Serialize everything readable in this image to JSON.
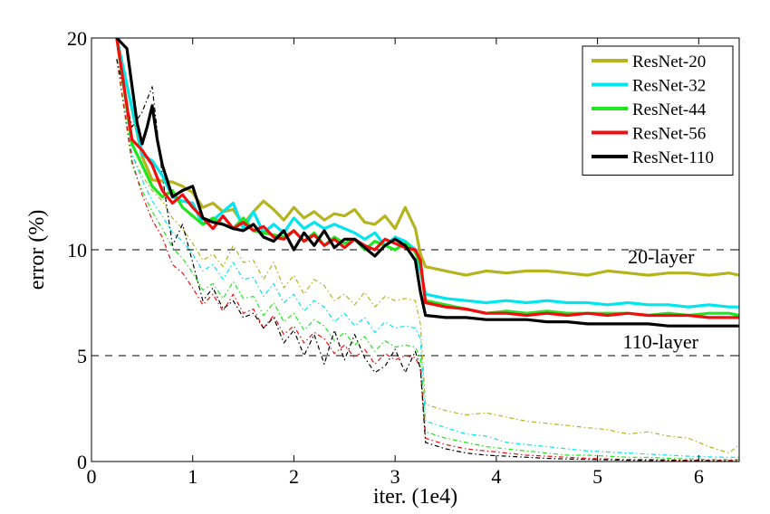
{
  "chart_data": {
    "type": "line",
    "title": "",
    "xlabel": "iter. (1e4)",
    "ylabel": "error (%)",
    "xlim": [
      0,
      6.4
    ],
    "ylim": [
      0,
      20
    ],
    "xticks": [
      0,
      1,
      2,
      3,
      4,
      5,
      6
    ],
    "yticks": [
      0,
      5,
      10,
      20
    ],
    "grid": "dashed horizontal lines at 5, 10, 20",
    "legend_position": "top-right",
    "annotations": [
      "20-layer",
      "110-layer"
    ],
    "series": [
      {
        "name": "ResNet-20",
        "color": "#b5b31e",
        "split": "test",
        "x": [
          0.25,
          0.5,
          0.6,
          0.8,
          0.9,
          1.0,
          1.1,
          1.2,
          1.3,
          1.4,
          1.5,
          1.6,
          1.7,
          1.8,
          1.9,
          2.0,
          2.1,
          2.2,
          2.3,
          2.4,
          2.5,
          2.6,
          2.7,
          2.8,
          2.9,
          3.0,
          3.05,
          3.1,
          3.15,
          3.2,
          3.25,
          3.3,
          3.5,
          3.7,
          3.9,
          4.1,
          4.3,
          4.5,
          4.7,
          4.9,
          5.1,
          5.3,
          5.5,
          5.7,
          5.9,
          6.1,
          6.3,
          6.4
        ],
        "y": [
          20,
          14.4,
          13.3,
          13.2,
          13.0,
          12.7,
          12.0,
          12.2,
          11.8,
          11.9,
          11.2,
          11.8,
          12.3,
          11.9,
          11.4,
          12.0,
          11.5,
          11.8,
          11.4,
          11.7,
          11.6,
          11.9,
          11.3,
          11.2,
          11.6,
          11.0,
          11.5,
          12.0,
          11.5,
          11.0,
          9.8,
          9.2,
          9.0,
          8.8,
          9.0,
          8.9,
          9.0,
          9.0,
          8.9,
          8.8,
          9.0,
          8.9,
          8.8,
          8.9,
          8.9,
          8.8,
          8.9,
          8.8
        ]
      },
      {
        "name": "ResNet-32",
        "color": "#00e5ee",
        "split": "test",
        "x": [
          0.25,
          0.5,
          0.6,
          0.7,
          0.8,
          0.9,
          1.0,
          1.1,
          1.2,
          1.3,
          1.4,
          1.5,
          1.6,
          1.7,
          1.8,
          1.9,
          2.0,
          2.1,
          2.2,
          2.3,
          2.4,
          2.5,
          2.6,
          2.7,
          2.8,
          2.9,
          3.0,
          3.1,
          3.2,
          3.25,
          3.3,
          3.5,
          3.7,
          3.9,
          4.1,
          4.3,
          4.5,
          4.7,
          4.9,
          5.1,
          5.3,
          5.5,
          5.7,
          5.9,
          6.1,
          6.3,
          6.4
        ],
        "y": [
          20,
          14.5,
          14.2,
          13.5,
          12.5,
          12.3,
          12.2,
          11.2,
          11.4,
          11.8,
          12.2,
          11.0,
          11.8,
          10.8,
          11.2,
          10.8,
          11.5,
          11.0,
          11.3,
          11.0,
          11.2,
          11.0,
          10.8,
          10.5,
          10.8,
          10.2,
          10.6,
          10.4,
          10.0,
          9.0,
          7.9,
          7.7,
          7.6,
          7.5,
          7.6,
          7.5,
          7.6,
          7.5,
          7.5,
          7.4,
          7.5,
          7.4,
          7.4,
          7.3,
          7.4,
          7.3,
          7.3
        ]
      },
      {
        "name": "ResNet-44",
        "color": "#1ee620",
        "split": "test",
        "x": [
          0.25,
          0.4,
          0.5,
          0.6,
          0.7,
          0.8,
          0.9,
          1.0,
          1.1,
          1.2,
          1.3,
          1.4,
          1.5,
          1.6,
          1.7,
          1.8,
          1.9,
          2.0,
          2.1,
          2.2,
          2.3,
          2.4,
          2.5,
          2.6,
          2.7,
          2.8,
          2.9,
          3.0,
          3.1,
          3.2,
          3.25,
          3.3,
          3.5,
          3.7,
          3.9,
          4.1,
          4.3,
          4.5,
          4.7,
          4.9,
          5.1,
          5.3,
          5.5,
          5.7,
          5.9,
          6.1,
          6.3,
          6.4
        ],
        "y": [
          20,
          15.0,
          14.0,
          13.0,
          12.5,
          12.8,
          12.0,
          11.6,
          11.2,
          11.5,
          11.2,
          11.0,
          11.5,
          10.9,
          10.8,
          10.7,
          10.6,
          10.9,
          10.4,
          10.8,
          10.2,
          10.6,
          10.3,
          10.5,
          10.0,
          10.4,
          10.2,
          10.0,
          10.3,
          9.9,
          9.3,
          7.6,
          7.4,
          7.2,
          7.0,
          7.1,
          7.0,
          7.1,
          7.0,
          7.0,
          7.0,
          7.0,
          6.9,
          7.0,
          6.9,
          7.0,
          7.0,
          6.9
        ]
      },
      {
        "name": "ResNet-56",
        "color": "#ef0f0f",
        "split": "test",
        "x": [
          0.25,
          0.4,
          0.5,
          0.6,
          0.7,
          0.8,
          0.9,
          1.0,
          1.1,
          1.2,
          1.3,
          1.4,
          1.5,
          1.6,
          1.7,
          1.8,
          1.9,
          2.0,
          2.1,
          2.2,
          2.3,
          2.4,
          2.5,
          2.6,
          2.7,
          2.8,
          2.9,
          3.0,
          3.1,
          3.2,
          3.25,
          3.3,
          3.5,
          3.7,
          3.9,
          4.1,
          4.3,
          4.5,
          4.7,
          4.9,
          5.1,
          5.3,
          5.5,
          5.7,
          5.9,
          6.1,
          6.3,
          6.4
        ],
        "y": [
          20,
          15.2,
          14.7,
          14.0,
          12.8,
          12.2,
          12.6,
          12.0,
          11.5,
          11.0,
          11.6,
          11.0,
          11.3,
          10.9,
          11.1,
          10.6,
          10.5,
          10.9,
          10.4,
          10.7,
          10.2,
          10.5,
          10.1,
          10.5,
          10.2,
          10.0,
          10.5,
          10.3,
          10.1,
          10.0,
          9.5,
          7.5,
          7.3,
          7.2,
          7.0,
          7.0,
          6.9,
          7.0,
          6.9,
          7.0,
          6.9,
          7.0,
          6.9,
          6.9,
          6.9,
          6.8,
          6.8,
          6.8
        ]
      },
      {
        "name": "ResNet-110",
        "color": "#000000",
        "split": "test",
        "x": [
          0.25,
          0.35,
          0.45,
          0.5,
          0.55,
          0.6,
          0.65,
          0.7,
          0.8,
          0.9,
          1.0,
          1.1,
          1.2,
          1.3,
          1.4,
          1.5,
          1.6,
          1.7,
          1.8,
          1.9,
          2.0,
          2.1,
          2.2,
          2.3,
          2.4,
          2.5,
          2.6,
          2.7,
          2.8,
          2.9,
          3.0,
          3.1,
          3.2,
          3.25,
          3.3,
          3.5,
          3.7,
          3.9,
          4.1,
          4.3,
          4.5,
          4.7,
          4.9,
          5.1,
          5.3,
          5.5,
          5.7,
          5.9,
          6.1,
          6.3,
          6.4
        ],
        "y": [
          20,
          19.5,
          16.0,
          15.0,
          15.8,
          16.8,
          15.2,
          14.0,
          12.5,
          12.8,
          13.0,
          11.5,
          11.3,
          11.2,
          11.0,
          10.9,
          11.2,
          10.6,
          10.4,
          10.9,
          10.0,
          10.8,
          10.2,
          10.9,
          10.1,
          10.5,
          10.5,
          10.1,
          9.7,
          10.2,
          10.5,
          10.2,
          9.5,
          8.0,
          6.9,
          6.8,
          6.8,
          6.7,
          6.7,
          6.7,
          6.6,
          6.6,
          6.5,
          6.5,
          6.5,
          6.5,
          6.4,
          6.4,
          6.4,
          6.4,
          6.4
        ]
      },
      {
        "name": "ResNet-20",
        "color": "#b5b31e",
        "split": "train",
        "x": [
          0.25,
          0.4,
          0.5,
          0.6,
          0.7,
          0.8,
          0.9,
          1.0,
          1.1,
          1.2,
          1.3,
          1.4,
          1.5,
          1.6,
          1.7,
          1.8,
          1.9,
          2.0,
          2.1,
          2.2,
          2.3,
          2.4,
          2.5,
          2.6,
          2.7,
          2.8,
          2.9,
          3.0,
          3.1,
          3.2,
          3.25,
          3.3,
          3.5,
          3.7,
          3.9,
          4.1,
          4.3,
          4.5,
          4.7,
          4.9,
          5.1,
          5.3,
          5.5,
          5.7,
          5.9,
          6.1,
          6.3,
          6.4
        ],
        "y": [
          19,
          14.5,
          13.5,
          12.8,
          12.3,
          11.5,
          11.0,
          10.3,
          9.5,
          9.8,
          9.2,
          10.2,
          9.4,
          9.5,
          8.6,
          9.4,
          8.2,
          8.8,
          7.9,
          8.6,
          8.3,
          7.6,
          7.9,
          7.4,
          8.0,
          7.3,
          7.8,
          7.6,
          7.7,
          7.6,
          6.5,
          2.7,
          2.4,
          2.2,
          2.3,
          2.1,
          1.9,
          1.8,
          1.7,
          1.6,
          1.5,
          1.3,
          1.4,
          1.2,
          1.1,
          0.7,
          0.4,
          0.8
        ]
      },
      {
        "name": "ResNet-32",
        "color": "#00e5ee",
        "split": "train",
        "x": [
          0.25,
          0.4,
          0.5,
          0.6,
          0.7,
          0.8,
          0.9,
          1.0,
          1.1,
          1.2,
          1.3,
          1.4,
          1.5,
          1.6,
          1.7,
          1.8,
          1.9,
          2.0,
          2.1,
          2.2,
          2.3,
          2.4,
          2.5,
          2.6,
          2.7,
          2.8,
          2.9,
          3.0,
          3.1,
          3.2,
          3.25,
          3.3,
          3.5,
          3.7,
          3.9,
          4.1,
          4.3,
          4.5,
          4.7,
          4.9,
          5.1,
          5.3,
          5.5,
          5.7,
          5.9,
          6.1,
          6.3,
          6.4
        ],
        "y": [
          19,
          14.5,
          13.3,
          12.3,
          11.6,
          10.8,
          10.4,
          9.8,
          9.0,
          9.3,
          8.6,
          9.4,
          8.6,
          8.7,
          7.8,
          8.4,
          7.5,
          7.9,
          7.1,
          7.6,
          7.3,
          6.6,
          7.0,
          6.4,
          6.8,
          6.1,
          6.6,
          6.3,
          6.4,
          6.3,
          5.8,
          1.9,
          1.6,
          1.3,
          1.2,
          0.9,
          0.8,
          0.7,
          0.6,
          0.5,
          0.45,
          0.4,
          0.35,
          0.3,
          0.25,
          0.22,
          0.2,
          0.2
        ]
      },
      {
        "name": "ResNet-44",
        "color": "#1ee620",
        "split": "train",
        "x": [
          0.25,
          0.4,
          0.5,
          0.6,
          0.7,
          0.8,
          0.9,
          1.0,
          1.1,
          1.2,
          1.3,
          1.4,
          1.5,
          1.6,
          1.7,
          1.8,
          1.9,
          2.0,
          2.1,
          2.2,
          2.3,
          2.4,
          2.5,
          2.6,
          2.7,
          2.8,
          2.9,
          3.0,
          3.1,
          3.2,
          3.25,
          3.3,
          3.5,
          3.7,
          3.9,
          4.1,
          4.3,
          4.5,
          4.7,
          4.9,
          5.1,
          5.3,
          5.5,
          5.7,
          5.9,
          6.1,
          6.3,
          6.4
        ],
        "y": [
          19,
          14.0,
          12.8,
          11.8,
          11.0,
          10.1,
          9.6,
          8.9,
          8.1,
          8.4,
          7.7,
          8.5,
          7.7,
          7.8,
          6.9,
          7.5,
          6.6,
          7.0,
          6.2,
          6.7,
          6.4,
          5.7,
          6.1,
          5.5,
          5.9,
          5.2,
          5.7,
          5.4,
          5.5,
          5.4,
          4.9,
          1.4,
          1.1,
          0.9,
          0.7,
          0.6,
          0.5,
          0.4,
          0.3,
          0.3,
          0.25,
          0.2,
          0.2,
          0.15,
          0.12,
          0.1,
          0.1,
          0.1
        ]
      },
      {
        "name": "ResNet-56",
        "color": "#ef0f0f",
        "split": "train",
        "x": [
          0.25,
          0.4,
          0.5,
          0.6,
          0.7,
          0.8,
          0.9,
          1.0,
          1.1,
          1.2,
          1.3,
          1.4,
          1.5,
          1.6,
          1.7,
          1.8,
          1.9,
          2.0,
          2.1,
          2.2,
          2.3,
          2.4,
          2.5,
          2.6,
          2.7,
          2.8,
          2.9,
          3.0,
          3.1,
          3.2,
          3.25,
          3.3,
          3.5,
          3.7,
          3.9,
          4.1,
          4.3,
          4.5,
          4.7,
          4.9,
          5.1,
          5.3,
          5.5,
          5.7,
          5.9,
          6.1,
          6.3,
          6.4
        ],
        "y": [
          19,
          14.2,
          12.6,
          11.4,
          10.6,
          9.3,
          8.9,
          8.2,
          7.4,
          7.9,
          7.1,
          7.9,
          7.0,
          7.2,
          6.3,
          6.9,
          6.0,
          6.4,
          5.6,
          6.1,
          5.8,
          5.1,
          5.5,
          4.9,
          5.3,
          4.6,
          5.1,
          4.8,
          5.0,
          4.9,
          4.4,
          1.1,
          0.8,
          0.6,
          0.5,
          0.4,
          0.3,
          0.25,
          0.2,
          0.15,
          0.12,
          0.1,
          0.1,
          0.08,
          0.06,
          0.05,
          0.05,
          0.05
        ]
      },
      {
        "name": "ResNet-110",
        "color": "#000000",
        "split": "train",
        "x": [
          0.25,
          0.4,
          0.5,
          0.6,
          0.7,
          0.8,
          0.9,
          1.0,
          1.1,
          1.2,
          1.3,
          1.4,
          1.5,
          1.6,
          1.7,
          1.8,
          1.9,
          2.0,
          2.1,
          2.2,
          2.3,
          2.4,
          2.5,
          2.6,
          2.7,
          2.8,
          2.9,
          3.0,
          3.1,
          3.2,
          3.25,
          3.3,
          3.5,
          3.7,
          3.9,
          4.1,
          4.3,
          4.5,
          4.7,
          4.9,
          5.1,
          5.3,
          5.5,
          5.7,
          5.9,
          6.1,
          6.3,
          6.4
        ],
        "y": [
          19,
          15.8,
          16.5,
          17.7,
          13.5,
          10.2,
          11.2,
          9.4,
          7.6,
          8.2,
          7.2,
          7.6,
          6.8,
          7.0,
          6.3,
          6.8,
          5.6,
          6.2,
          5.0,
          6.0,
          4.6,
          6.2,
          4.8,
          6.0,
          4.9,
          4.2,
          4.5,
          5.3,
          4.2,
          5.2,
          4.4,
          0.9,
          0.6,
          0.4,
          0.3,
          0.25,
          0.2,
          0.15,
          0.12,
          0.1,
          0.08,
          0.06,
          0.05,
          0.05,
          0.04,
          0.04,
          0.03,
          0.03
        ]
      }
    ]
  }
}
